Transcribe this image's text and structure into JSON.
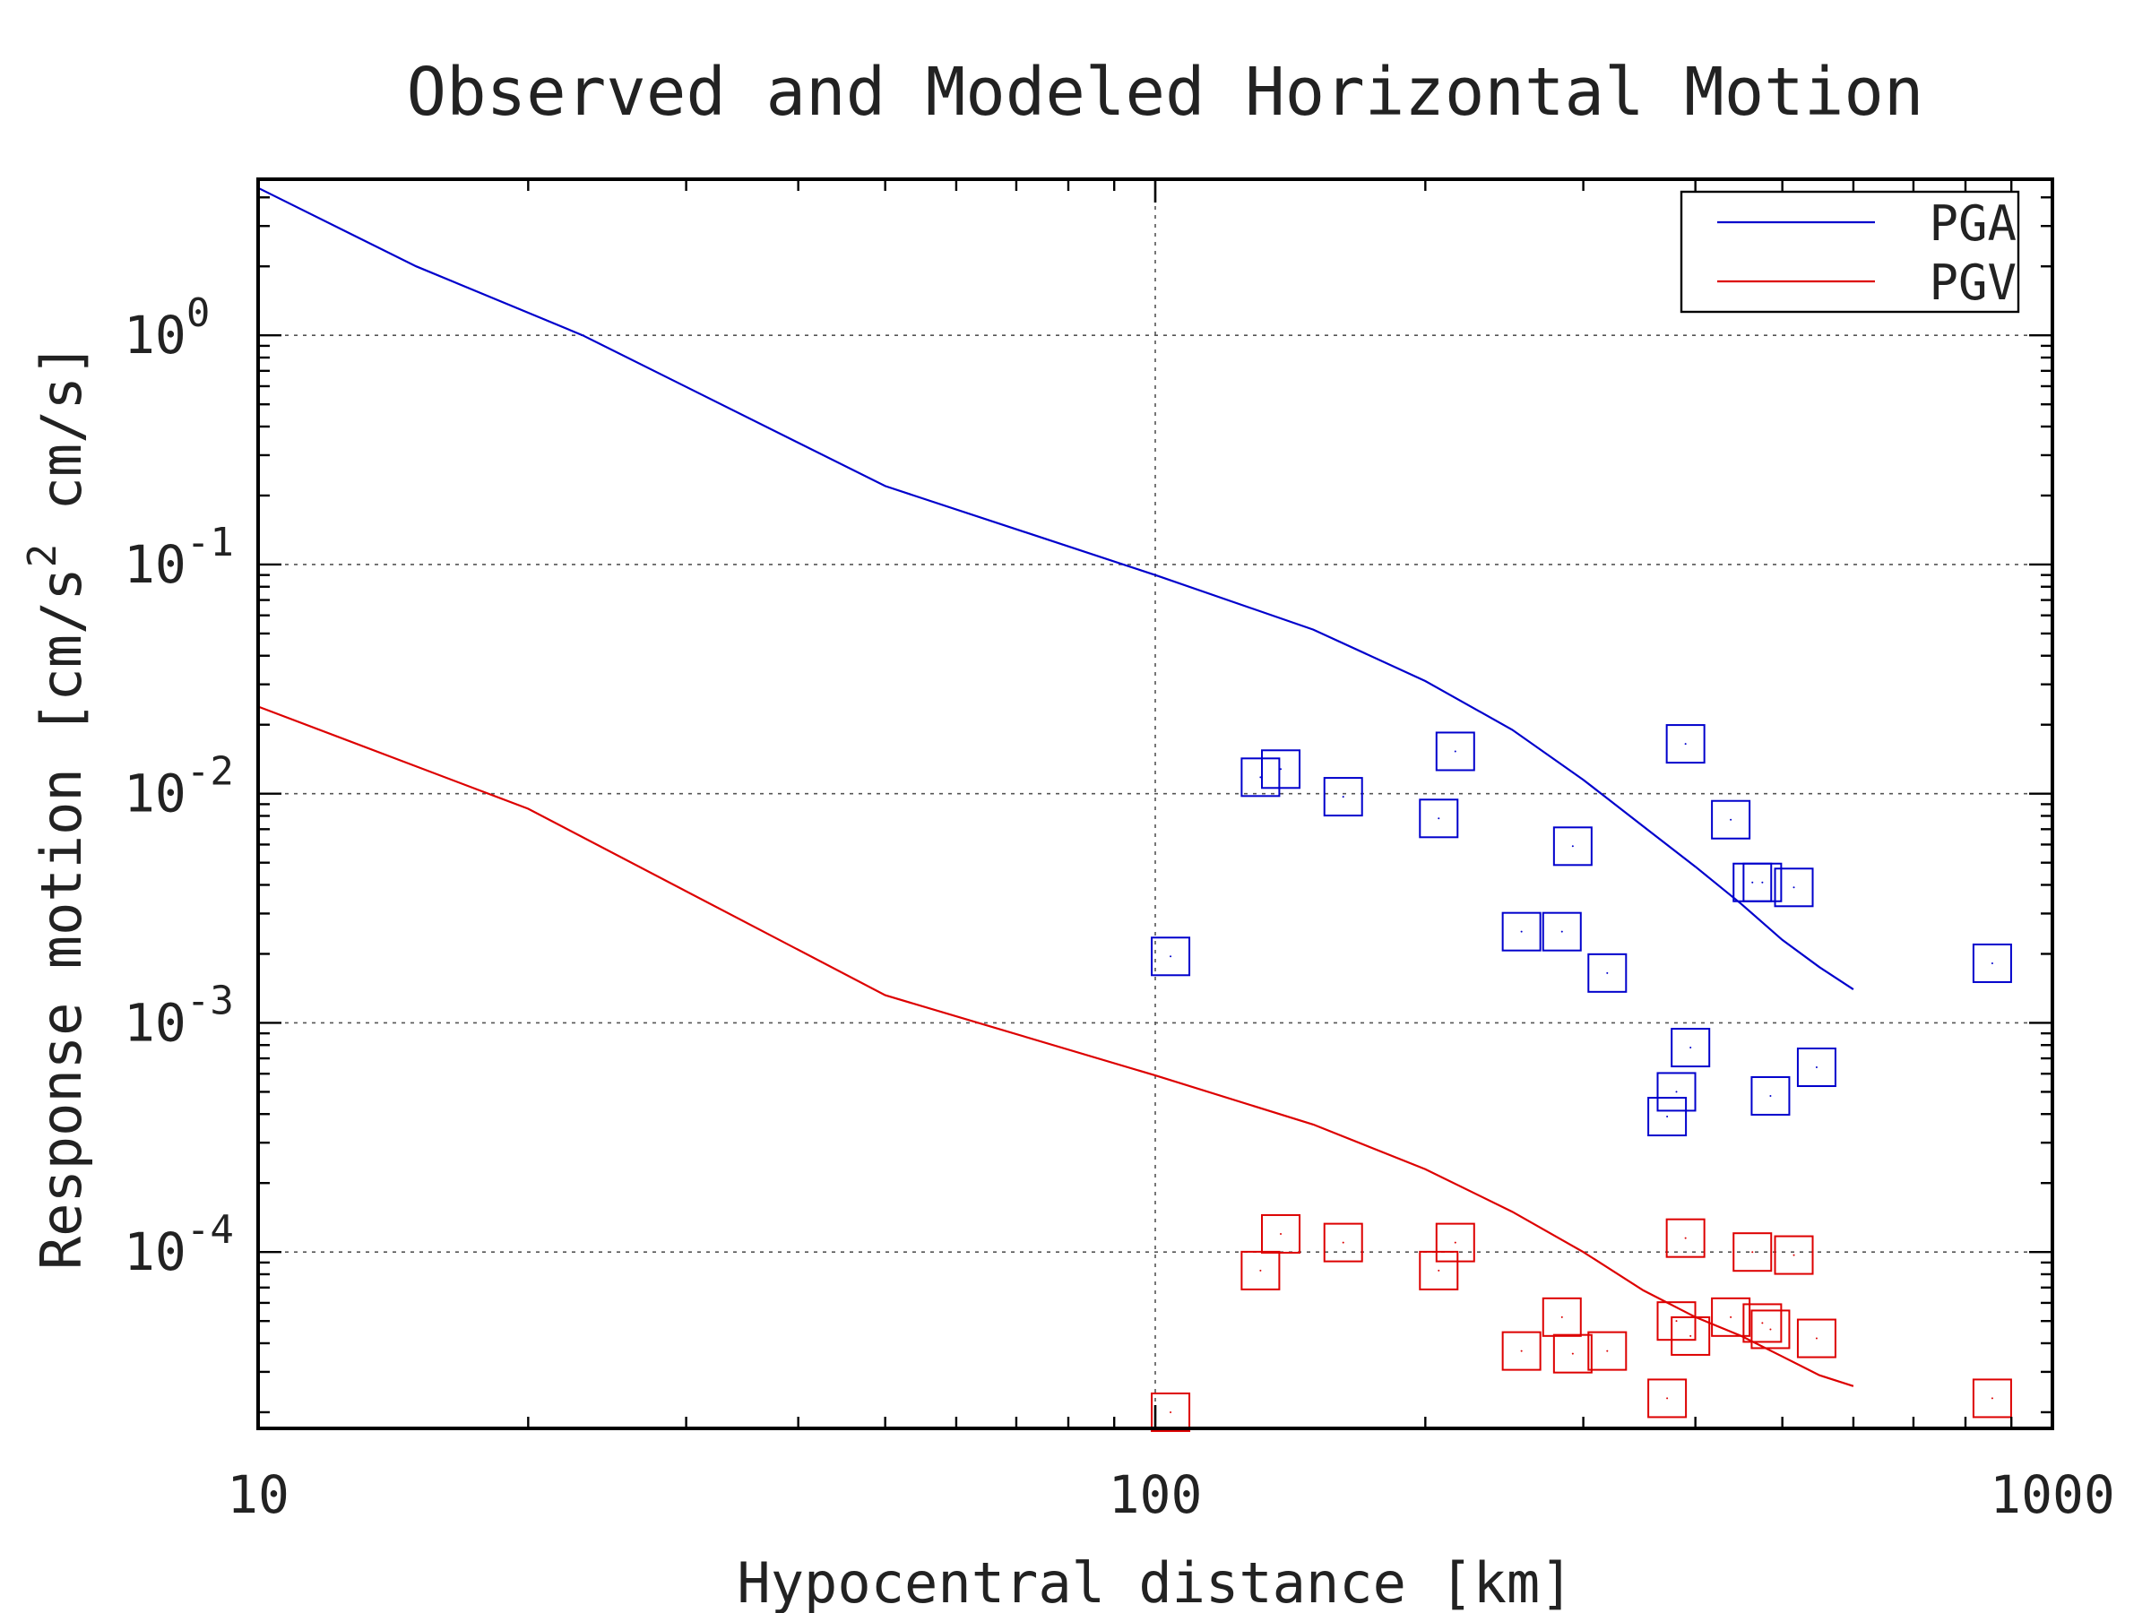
{
  "chart_data": {
    "type": "line",
    "title": "Observed and Modeled Horizontal Motion",
    "xlabel": "Hypocentral distance [km]",
    "ylabel_parts": [
      "Response motion [cm/s",
      "2",
      " cm/s]"
    ],
    "x_scale": "log",
    "y_scale": "log",
    "xlim": [
      10,
      1000
    ],
    "ylim": [
      1.7e-05,
      4.8
    ],
    "x_ticks": [
      {
        "value": 10,
        "label": "10"
      },
      {
        "value": 100,
        "label": "100"
      },
      {
        "value": 1000,
        "label": "1000"
      }
    ],
    "y_ticks": [
      {
        "value": 1,
        "base": "10",
        "exp": "0"
      },
      {
        "value": 0.1,
        "base": "10",
        "exp": "-1"
      },
      {
        "value": 0.01,
        "base": "10",
        "exp": "-2"
      },
      {
        "value": 0.001,
        "base": "10",
        "exp": "-3"
      },
      {
        "value": 0.0001,
        "base": "10",
        "exp": "-4"
      }
    ],
    "grid": true,
    "legend_position": "top-right",
    "series": [
      {
        "name": "PGA",
        "color": "#0000cc",
        "line": [
          [
            10,
            4.4
          ],
          [
            15,
            2.0
          ],
          [
            23,
            1.0
          ],
          [
            50,
            0.22
          ],
          [
            100,
            0.09
          ],
          [
            150,
            0.052
          ],
          [
            200,
            0.031
          ],
          [
            250,
            0.019
          ],
          [
            300,
            0.0115
          ],
          [
            350,
            0.0072
          ],
          [
            400,
            0.0048
          ],
          [
            450,
            0.0033
          ],
          [
            500,
            0.0023
          ],
          [
            550,
            0.00175
          ],
          [
            600,
            0.0014
          ]
        ],
        "observed": [
          [
            104,
            0.00195
          ],
          [
            131,
            0.0118
          ],
          [
            138,
            0.0128
          ],
          [
            162,
            0.0097
          ],
          [
            207,
            0.0078
          ],
          [
            216,
            0.0153
          ],
          [
            256,
            0.0025
          ],
          [
            284,
            0.0025
          ],
          [
            292,
            0.0059
          ],
          [
            319,
            0.00165
          ],
          [
            381,
            0.0005
          ],
          [
            390,
            0.0165
          ],
          [
            395,
            0.00078
          ],
          [
            372,
            0.00039
          ],
          [
            438,
            0.0077
          ],
          [
            463,
            0.0041
          ],
          [
            475,
            0.0041
          ],
          [
            485,
            0.00048
          ],
          [
            515,
            0.0039
          ],
          [
            546,
            0.00064
          ],
          [
            857,
            0.00182
          ]
        ]
      },
      {
        "name": "PGV",
        "color": "#dd0000",
        "line": [
          [
            10,
            0.024
          ],
          [
            20,
            0.0086
          ],
          [
            50,
            0.00132
          ],
          [
            100,
            0.00059
          ],
          [
            150,
            0.00036
          ],
          [
            200,
            0.00023
          ],
          [
            250,
            0.00015
          ],
          [
            300,
            0.0001
          ],
          [
            350,
            6.8e-05
          ],
          [
            400,
            5.2e-05
          ],
          [
            450,
            4.3e-05
          ],
          [
            500,
            3.5e-05
          ],
          [
            550,
            2.9e-05
          ],
          [
            600,
            2.6e-05
          ]
        ],
        "observed": [
          [
            104,
            2e-05
          ],
          [
            131,
            8.3e-05
          ],
          [
            138,
            0.00012
          ],
          [
            162,
            0.00011
          ],
          [
            207,
            8.3e-05
          ],
          [
            216,
            0.00011
          ],
          [
            256,
            3.7e-05
          ],
          [
            284,
            5.2e-05
          ],
          [
            292,
            3.6e-05
          ],
          [
            319,
            3.7e-05
          ],
          [
            372,
            2.3e-05
          ],
          [
            381,
            5e-05
          ],
          [
            390,
            0.000115
          ],
          [
            395,
            4.3e-05
          ],
          [
            438,
            5.2e-05
          ],
          [
            463,
            0.0001
          ],
          [
            475,
            4.9e-05
          ],
          [
            485,
            4.6e-05
          ],
          [
            515,
            9.7e-05
          ],
          [
            546,
            4.2e-05
          ],
          [
            857,
            2.3e-05
          ]
        ]
      }
    ]
  }
}
